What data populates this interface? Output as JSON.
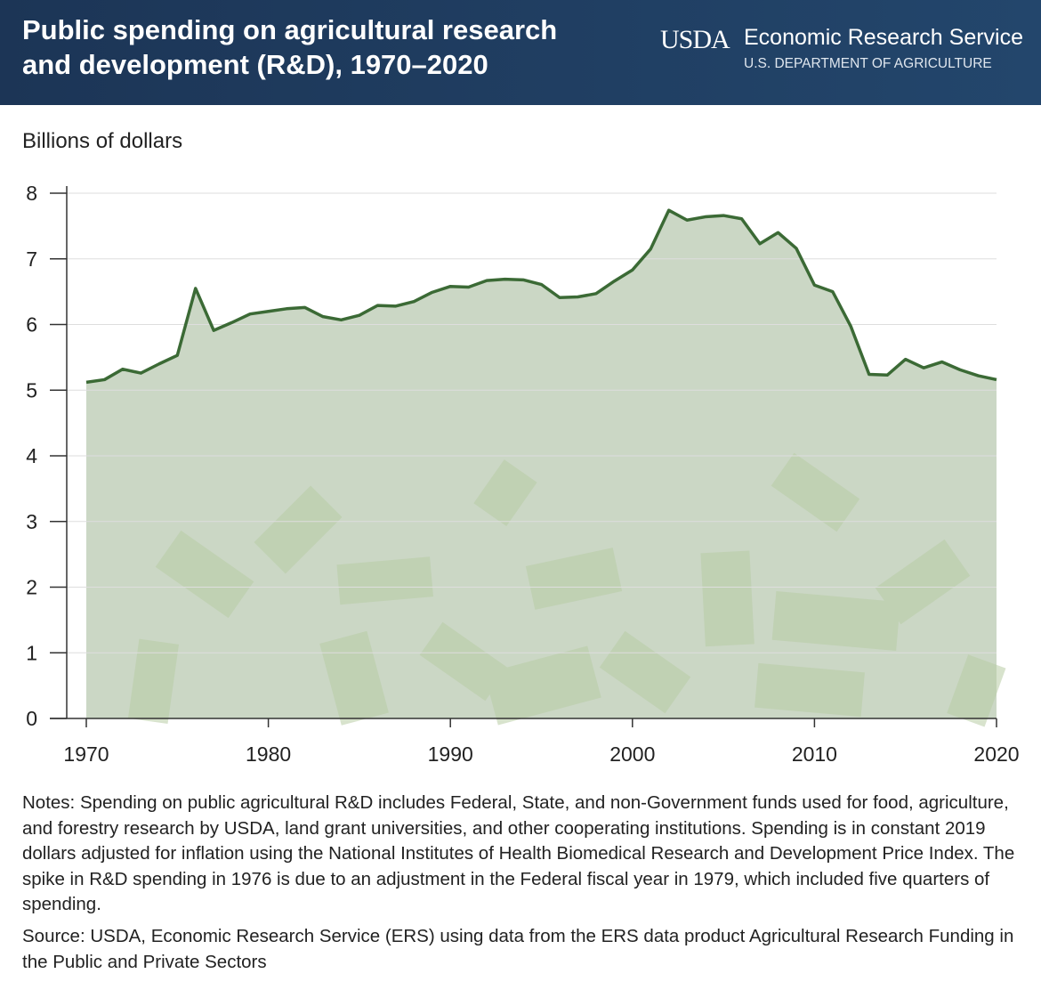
{
  "chart_data": {
    "type": "area",
    "title": "Public spending on agricultural research and development (R&D), 1970–2020",
    "logo_text": "USDA",
    "organization": "Economic Research Service",
    "department": "U.S. DEPARTMENT OF AGRICULTURE",
    "y_label": "Billions of dollars",
    "x": [
      1970,
      1971,
      1972,
      1973,
      1974,
      1975,
      1976,
      1977,
      1978,
      1979,
      1980,
      1981,
      1982,
      1983,
      1984,
      1985,
      1986,
      1987,
      1988,
      1989,
      1990,
      1991,
      1992,
      1993,
      1994,
      1995,
      1996,
      1997,
      1998,
      1999,
      2000,
      2001,
      2002,
      2003,
      2004,
      2005,
      2006,
      2007,
      2008,
      2009,
      2010,
      2011,
      2012,
      2013,
      2014,
      2015,
      2016,
      2017,
      2018,
      2019,
      2020
    ],
    "values": [
      5.12,
      5.16,
      5.32,
      5.26,
      5.4,
      5.53,
      6.55,
      5.91,
      6.03,
      6.16,
      6.2,
      6.24,
      6.26,
      6.12,
      6.07,
      6.14,
      6.29,
      6.28,
      6.35,
      6.49,
      6.58,
      6.57,
      6.67,
      6.69,
      6.68,
      6.61,
      6.41,
      6.42,
      6.47,
      6.66,
      6.83,
      7.15,
      7.74,
      7.59,
      7.64,
      7.66,
      7.61,
      7.23,
      7.4,
      7.16,
      6.6,
      6.5,
      5.97,
      5.24,
      5.23,
      5.47,
      5.34,
      5.43,
      5.31,
      5.22,
      5.16
    ],
    "color": "#3b6a35",
    "fill": "#cbd7c5",
    "xlim": [
      1970,
      2020
    ],
    "xticks": [
      1970,
      1980,
      1990,
      2000,
      2010,
      2020
    ],
    "ylim": [
      0,
      8
    ],
    "yticks": [
      0,
      1,
      2,
      3,
      4,
      5,
      6,
      7,
      8
    ],
    "grid": true,
    "notes": "Notes: Spending on public agricultural R&D includes Federal, State, and non-Government funds used for food, agriculture, and forestry research by USDA, land grant universities, and other cooperating institutions. Spending is in constant 2019 dollars adjusted for inflation using the National Institutes of Health Biomedical Research and Development Price Index. The spike in R&D spending in 1976 is due to an adjustment in the Federal fiscal year in 1979, which included five quarters of spending.",
    "source": "Source: USDA, Economic Research Service (ERS) using data from the ERS data product Agricultural Research Funding in the Public and Private Sectors"
  }
}
